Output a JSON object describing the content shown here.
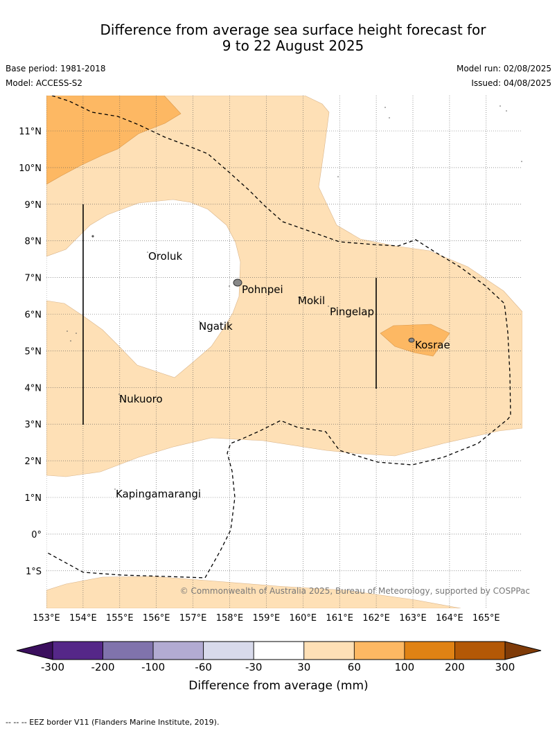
{
  "title": {
    "line1": "Difference from average sea surface height forecast for",
    "line2": "9 to 22 August 2025"
  },
  "meta": {
    "base_period": "Base period: 1981-2018",
    "model": "Model: ACCESS-S2",
    "model_run": "Model run: 02/08/2025",
    "issued": "Issued: 04/08/2025"
  },
  "map": {
    "lon_ticks": [
      "153°E",
      "154°E",
      "155°E",
      "156°E",
      "157°E",
      "158°E",
      "159°E",
      "160°E",
      "161°E",
      "162°E",
      "163°E",
      "164°E",
      "165°E"
    ],
    "lat_ticks": [
      "11°N",
      "10°N",
      "9°N",
      "8°N",
      "7°N",
      "6°N",
      "5°N",
      "4°N",
      "3°N",
      "2°N",
      "1°N",
      "0°",
      "1°S"
    ],
    "places": [
      "Oroluk",
      "Pohnpei",
      "Mokil",
      "Pingelap",
      "Ngatik",
      "Kosrae",
      "Nukuoro",
      "Kapingamarangi"
    ],
    "copyright": "© Commonwealth of Australia 2025, Bureau of Meteorology, supported by COSPPac"
  },
  "legend": {
    "ticks": [
      "-300",
      "-200",
      "-100",
      "-60",
      "-30",
      "30",
      "60",
      "100",
      "200",
      "300"
    ],
    "colors": [
      "#3b0f5e",
      "#552788",
      "#8073ac",
      "#b2abd2",
      "#d8daeb",
      "#ffffff",
      "#fee0b6",
      "#fdb863",
      "#e08214",
      "#b35806",
      "#7f3b08"
    ],
    "label": "Difference from average (mm)"
  },
  "footer": "-- -- -- EEZ border V11 (Flanders Marine Institute, 2019)."
}
